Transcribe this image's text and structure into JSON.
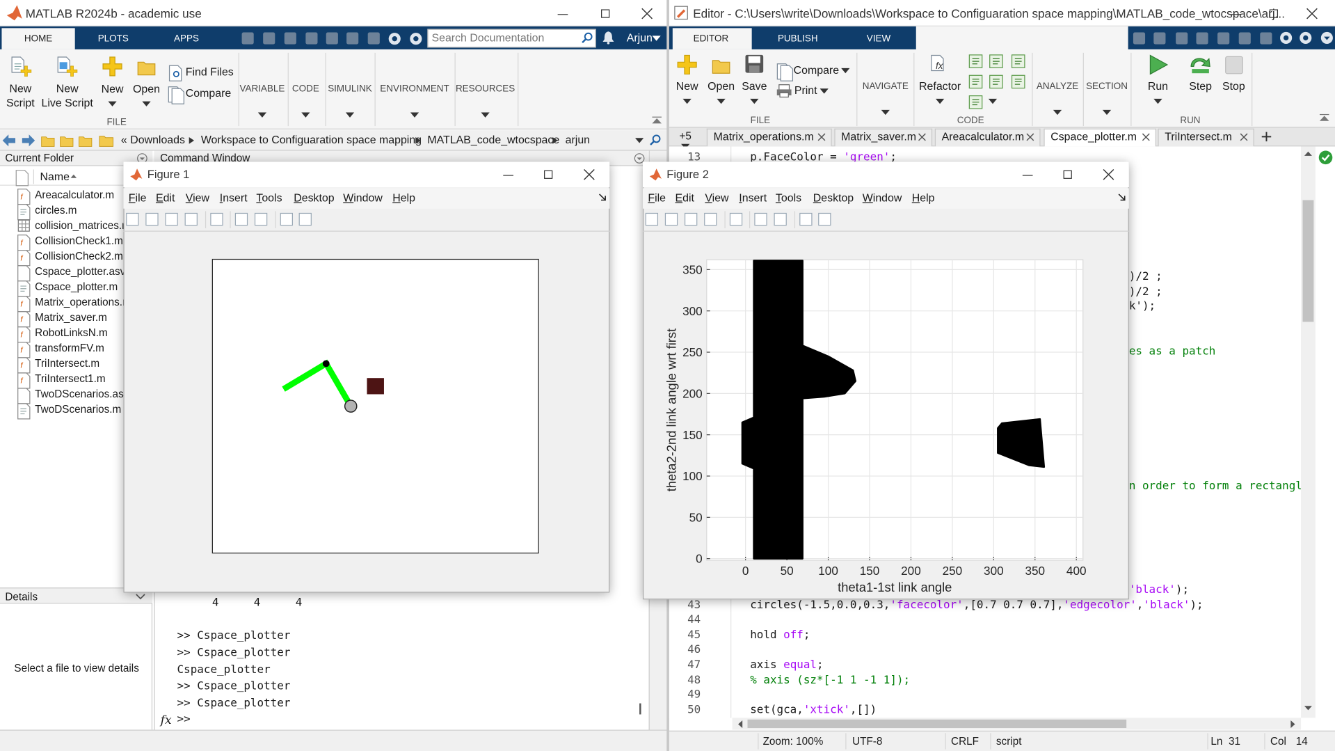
{
  "matlab": {
    "title": "MATLAB R2024b - academic use",
    "tabs": [
      "HOME",
      "PLOTS",
      "APPS"
    ],
    "search": "Search Documentation",
    "user": "Arjun",
    "file_buttons": [
      "New\nScript",
      "New\nLive Script",
      "New",
      "Open"
    ],
    "file_small": [
      "Find Files",
      "Compare"
    ],
    "file_section": "FILE",
    "sections": [
      "VARIABLE",
      "CODE",
      "SIMULINK",
      "ENVIRONMENT",
      "RESOURCES"
    ],
    "path": [
      "«",
      "Downloads",
      "Workspace to Configuaration space mapping",
      "MATLAB_code_wtocspace",
      "arjun"
    ],
    "current_folder": {
      "title": "Current Folder",
      "column": "Name",
      "files": [
        "Areacalculator.m",
        "circles.m",
        "collision_matrices.mat",
        "CollisionCheck1.m",
        "CollisionCheck2.m",
        "Cspace_plotter.asv",
        "Cspace_plotter.m",
        "Matrix_operations.m",
        "Matrix_saver.m",
        "RobotLinksN.m",
        "transformFV.m",
        "TriIntersect.m",
        "TriIntersect1.m",
        "TwoDScenarios.asv",
        "TwoDScenarios.m"
      ]
    },
    "details": {
      "title": "Details",
      "message": "Select a file to view details"
    },
    "command_window": {
      "title": "Command Window",
      "output_row": [
        4,
        4,
        4
      ],
      "lines": [
        ">> Cspace_plotter",
        ">> Cspace_plotter",
        "Cspace_plotter",
        ">> Cspace_plotter",
        ">> Cspace_plotter"
      ],
      "fx": "fx",
      "prompt": ">>"
    }
  },
  "editor": {
    "title": "Editor - C:\\Users\\write\\Downloads\\Workspace to Configuaration space mapping\\MATLAB_code_wtocspace\\arj...",
    "tabs": [
      "EDITOR",
      "PUBLISH",
      "VIEW"
    ],
    "file_buttons": [
      "New",
      "Open",
      "Save"
    ],
    "file_small": [
      "Compare",
      "Print"
    ],
    "file_section": "FILE",
    "navigate": "NAVIGATE",
    "refactor": "Refactor",
    "code_section": "CODE",
    "analyze": "ANALYZE",
    "section": "SECTION",
    "run_buttons": [
      "Run",
      "Step",
      "Stop"
    ],
    "run_section": "RUN",
    "more_tabs": "+5",
    "file_tabs": [
      "Matrix_operations.m",
      "Matrix_saver.m",
      "Areacalculator.m",
      "Cspace_plotter.m",
      "TriIntersect.m"
    ],
    "code": [
      {
        "number": 13,
        "text": "p.FaceColor = 'green';"
      },
      {
        "number": 43,
        "text": "circles(-1.5,0.0,0.3,'facecolor',[0.7 0.7 0.7],'edgecolor','black');"
      },
      {
        "number": 44
      },
      {
        "number": 45,
        "text": "hold off;"
      },
      {
        "number": 46
      },
      {
        "number": 47,
        "text": "axis equal;"
      },
      {
        "number": 48,
        "text": "% axis (sz*[-1 1 -1 1]);"
      },
      {
        "number": 49
      },
      {
        "number": 50,
        "text": "set(gca,'xtick',[])"
      }
    ],
    "fragments": [
      ")/2 ;",
      ")/2 ;",
      "k');",
      "es as a patch",
      "n order to form a rectangle",
      "'black');"
    ],
    "status": {
      "zoom": "Zoom: 100%",
      "encoding": "UTF-8",
      "line_ending": "CRLF",
      "file_type": "script",
      "ln_label": "Ln",
      "ln": 31,
      "col_label": "Col",
      "col": 14
    }
  },
  "figure1": {
    "title": "Figure 1",
    "menu": [
      "File",
      "Edit",
      "View",
      "Insert",
      "Tools",
      "Desktop",
      "Window",
      "Help"
    ]
  },
  "figure2": {
    "title": "Figure 2",
    "menu": [
      "File",
      "Edit",
      "View",
      "Insert",
      "Tools",
      "Desktop",
      "Window",
      "Help"
    ]
  },
  "chart_data": {
    "type": "area",
    "xlabel": "theta1-1st link angle",
    "ylabel": "theta2-2nd link angle wrt first",
    "xlim": [
      -47,
      408
    ],
    "ylim": [
      -2,
      362
    ],
    "xticks": [
      0,
      50,
      100,
      150,
      200,
      250,
      300,
      350,
      400
    ],
    "yticks": [
      0,
      50,
      100,
      150,
      200,
      250,
      300,
      350
    ],
    "grid": true,
    "series": [
      {
        "color": "#000000",
        "x": [
          10,
          10,
          -4,
          -4,
          10,
          10,
          69,
          69,
          100,
          130,
          133,
          120,
          95,
          69,
          69
        ],
        "y": [
          0,
          109,
          115,
          165,
          171,
          361,
          361,
          258,
          245,
          228,
          215,
          200,
          196,
          194,
          0
        ]
      },
      {
        "color": "#000000",
        "x": [
          310,
          356,
          361,
          343,
          305,
          305
        ],
        "y": [
          164,
          169,
          111,
          113,
          128,
          158
        ]
      }
    ]
  }
}
